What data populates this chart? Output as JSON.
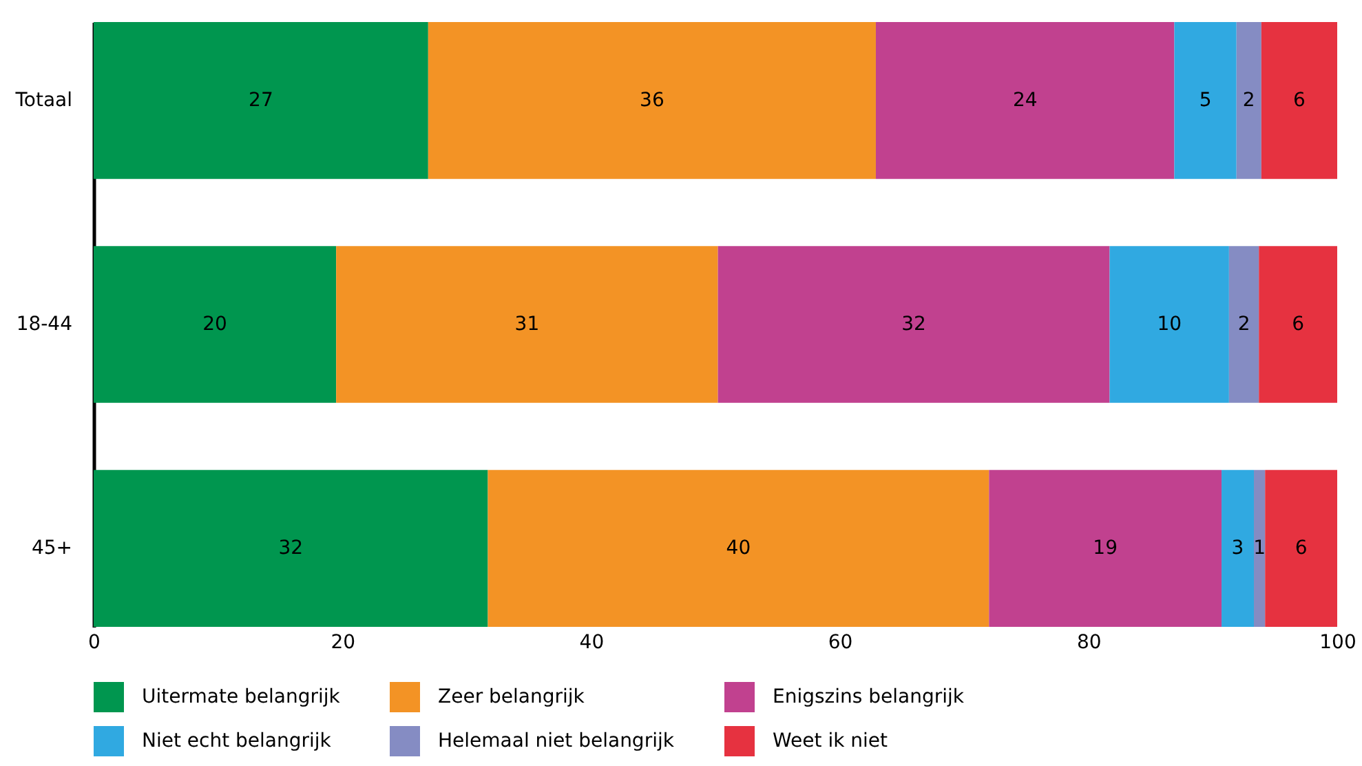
{
  "chart_data": {
    "type": "bar",
    "orientation": "horizontal",
    "stacked": true,
    "categories": [
      "Totaal",
      "18-44",
      "45+"
    ],
    "series": [
      {
        "name": "Uitermate belangrijk",
        "color": "#00964f",
        "values": [
          26.9,
          19.5,
          31.7
        ],
        "value_labels": [
          "27",
          "20",
          "32"
        ]
      },
      {
        "name": "Zeer belangrijk",
        "color": "#f39325",
        "values": [
          36.0,
          30.7,
          40.3
        ],
        "value_labels": [
          "36",
          "31",
          "40"
        ]
      },
      {
        "name": "Enigszins belangrijk",
        "color": "#c1418f",
        "values": [
          24.0,
          31.5,
          18.7
        ],
        "value_labels": [
          "24",
          "32",
          "19"
        ]
      },
      {
        "name": "Niet echt belangrijk",
        "color": "#30a9e1",
        "values": [
          5.0,
          9.6,
          2.6
        ],
        "value_labels": [
          "5",
          "10",
          "3"
        ]
      },
      {
        "name": "Helemaal niet belangrijk",
        "color": "#858cc3",
        "values": [
          2.0,
          2.4,
          0.9
        ],
        "value_labels": [
          "2",
          "2",
          "1"
        ]
      },
      {
        "name": "Weet ik niet",
        "color": "#e63240",
        "values": [
          6.1,
          6.3,
          5.8
        ],
        "value_labels": [
          "6",
          "6",
          "6"
        ]
      }
    ],
    "xlim": [
      0,
      100
    ],
    "xticks": [
      0,
      20,
      40,
      60,
      80,
      100
    ],
    "legend": "bottom",
    "grid": false
  }
}
